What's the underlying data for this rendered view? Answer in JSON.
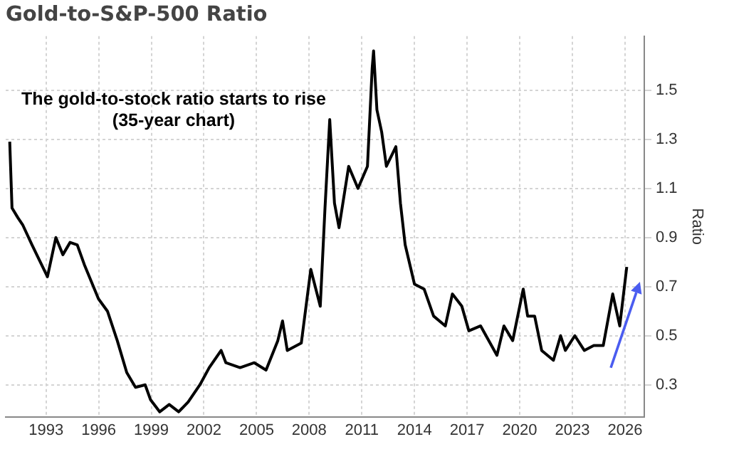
{
  "chart_data": {
    "type": "line",
    "title": "Gold-to-S&P-500 Ratio",
    "ylabel": "Ratio",
    "annotations": [
      "The gold-to-stock ratio starts to rise",
      "(35-year chart)"
    ],
    "x": [
      1990.93,
      1991.06,
      1991.4,
      1991.68,
      1992.2,
      1993.08,
      1993.56,
      1993.96,
      1994.37,
      1994.78,
      1995.18,
      1995.99,
      1996.5,
      1997.06,
      1997.6,
      1998.1,
      1998.65,
      1998.95,
      1999.48,
      2000.02,
      2000.56,
      2001.1,
      2001.77,
      2002.3,
      2002.98,
      2003.25,
      2004.06,
      2004.87,
      2005.54,
      2006.21,
      2006.48,
      2006.75,
      2007.55,
      2008.09,
      2008.63,
      2008.9,
      2009.17,
      2009.44,
      2009.7,
      2010.25,
      2010.78,
      2011.32,
      2011.59,
      2011.67,
      2011.86,
      2012.13,
      2012.4,
      2012.94,
      2013.2,
      2013.47,
      2014.0,
      2014.55,
      2015.09,
      2015.76,
      2016.16,
      2016.7,
      2017.1,
      2017.77,
      2018.7,
      2019.1,
      2019.6,
      2020.2,
      2020.45,
      2020.85,
      2021.25,
      2021.92,
      2022.33,
      2022.6,
      2023.14,
      2023.68,
      2024.22,
      2024.76,
      2025.3,
      2025.7,
      2026.1
    ],
    "series": [
      {
        "color": "#000000",
        "values": [
          1.29,
          1.02,
          0.98,
          0.95,
          0.87,
          0.74,
          0.9,
          0.83,
          0.88,
          0.87,
          0.79,
          0.65,
          0.6,
          0.48,
          0.35,
          0.29,
          0.3,
          0.24,
          0.19,
          0.22,
          0.19,
          0.23,
          0.3,
          0.37,
          0.44,
          0.39,
          0.37,
          0.39,
          0.36,
          0.48,
          0.56,
          0.44,
          0.47,
          0.77,
          0.62,
          1.02,
          1.38,
          1.04,
          0.94,
          1.19,
          1.1,
          1.19,
          1.59,
          1.66,
          1.42,
          1.33,
          1.19,
          1.27,
          1.04,
          0.87,
          0.71,
          0.69,
          0.58,
          0.54,
          0.67,
          0.62,
          0.52,
          0.54,
          0.42,
          0.54,
          0.48,
          0.69,
          0.58,
          0.58,
          0.44,
          0.4,
          0.5,
          0.44,
          0.5,
          0.44,
          0.46,
          0.46,
          0.67,
          0.54,
          0.78
        ]
      }
    ],
    "xlim": [
      1990.7,
      2027.1
    ],
    "xticks": [
      1993,
      1996,
      1999,
      2002,
      2005,
      2008,
      2011,
      2014,
      2017,
      2020,
      2023,
      2026
    ],
    "ylim": [
      0.17,
      1.72
    ],
    "yticks": [
      0.3,
      0.5,
      0.7,
      0.9,
      1.1,
      1.3,
      1.5
    ],
    "grid": true,
    "marker": "none",
    "line_style": "solid"
  }
}
